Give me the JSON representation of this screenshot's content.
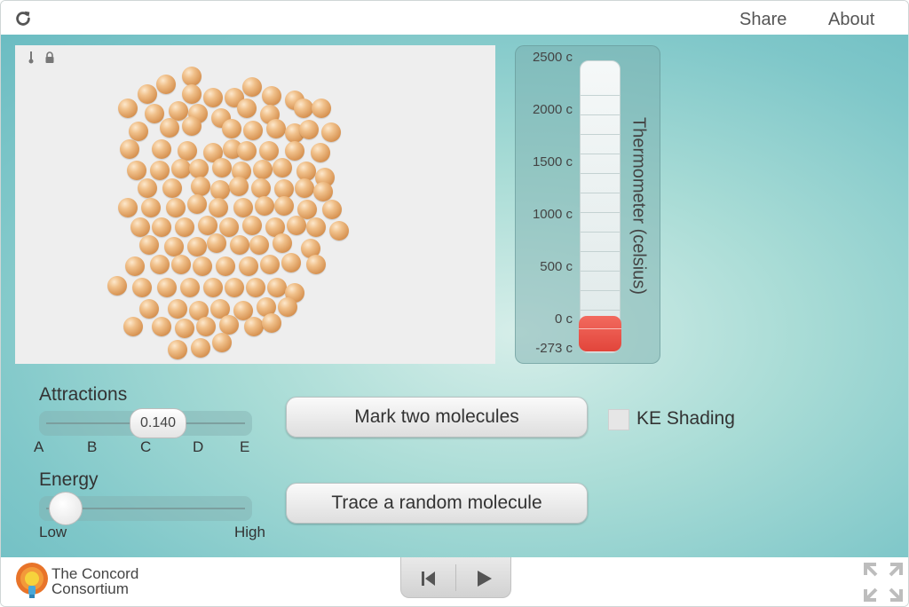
{
  "topbar": {
    "share_label": "Share",
    "about_label": "About",
    "reload_icon": "reload-icon"
  },
  "model": {
    "tool_icons": [
      "thermometer-icon",
      "lock-icon"
    ],
    "molecule_count": 135,
    "molecule_color": "#d99656"
  },
  "thermometer": {
    "title": "Thermometer (celsius)",
    "ticks": [
      "2500 c",
      "2000 c",
      "1500 c",
      "1000 c",
      "500 c",
      "0 c",
      "-273 c"
    ],
    "current_temperature_fraction": 0.0,
    "fill_color": "#e2453b"
  },
  "attractions": {
    "label": "Attractions",
    "value": "0.140",
    "ticks": [
      "A",
      "B",
      "C",
      "D",
      "E"
    ]
  },
  "energy": {
    "label": "Energy",
    "low_label": "Low",
    "high_label": "High",
    "level": 0.0
  },
  "buttons": {
    "mark_two": "Mark two molecules",
    "trace_random": "Trace a random molecule"
  },
  "ke_shading": {
    "label": "KE Shading",
    "checked": false
  },
  "footer": {
    "logo_line1": "The Concord",
    "logo_line2": "Consortium",
    "player_icons": [
      "step-back-icon",
      "play-icon"
    ],
    "fullscreen_icon": "fullscreen-icon"
  },
  "colors": {
    "background_teal": "#7fc7c9",
    "panel": "#eeeeee",
    "bulb_red": "#e2453b"
  }
}
